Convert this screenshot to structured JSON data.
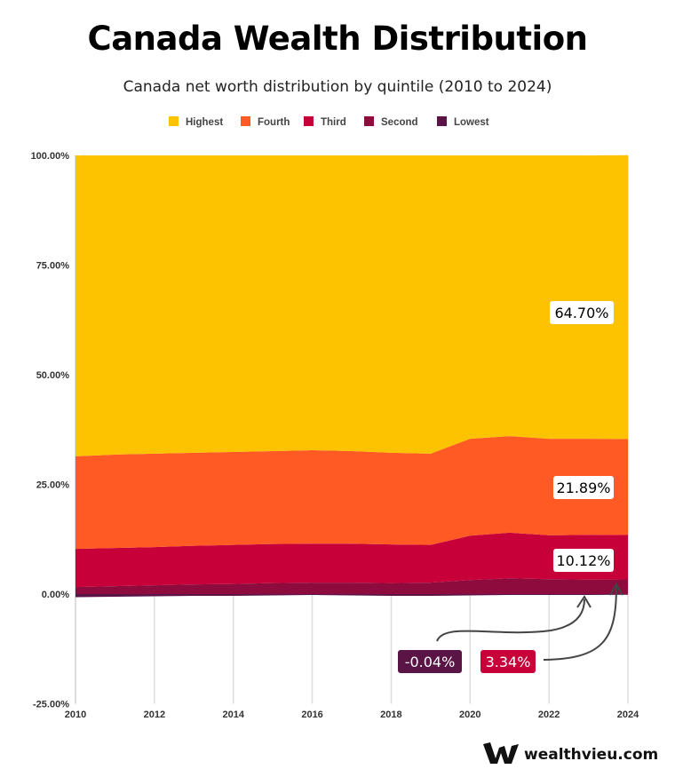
{
  "chart_data": {
    "type": "area",
    "stacked": true,
    "title": "Canada Wealth Distribution",
    "subtitle": "Canada net worth distribution by quintile (2010 to 2024)",
    "x": [
      2010,
      2011,
      2012,
      2013,
      2014,
      2015,
      2016,
      2017,
      2018,
      2019,
      2020,
      2021,
      2022,
      2023,
      2024
    ],
    "x_ticks": [
      "2010",
      "2012",
      "2014",
      "2016",
      "2018",
      "2020",
      "2022",
      "2024"
    ],
    "y_ticks": [
      "100.00%",
      "75.00%",
      "50.00%",
      "25.00%",
      "0.00%",
      "-25.00%"
    ],
    "ylim": [
      -25,
      100
    ],
    "grid": "vertical",
    "legend_position": "top",
    "series": [
      {
        "name": "Lowest",
        "color": "#5A1446",
        "values": [
          -0.6,
          -0.5,
          -0.4,
          -0.3,
          -0.3,
          -0.2,
          -0.1,
          -0.2,
          -0.3,
          -0.3,
          -0.2,
          -0.1,
          -0.1,
          -0.1,
          -0.04
        ]
      },
      {
        "name": "Second",
        "color": "#8E0B3E",
        "values": [
          1.6,
          1.8,
          2.0,
          2.2,
          2.3,
          2.5,
          2.6,
          2.6,
          2.5,
          2.6,
          3.2,
          3.6,
          3.4,
          3.3,
          3.34
        ]
      },
      {
        "name": "Third",
        "color": "#C8003A",
        "values": [
          8.7,
          8.7,
          8.7,
          8.8,
          8.9,
          8.9,
          8.9,
          8.9,
          8.8,
          8.6,
          10.1,
          10.4,
          10.0,
          10.2,
          10.12
        ]
      },
      {
        "name": "Fourth",
        "color": "#FF5A24",
        "values": [
          21.1,
          21.3,
          21.3,
          21.2,
          21.2,
          21.2,
          21.3,
          21.1,
          20.9,
          20.8,
          22.1,
          22.0,
          22.0,
          21.9,
          21.89
        ]
      },
      {
        "name": "Highest",
        "color": "#FDC300",
        "values": [
          68.6,
          68.2,
          68.0,
          67.8,
          67.6,
          67.4,
          67.2,
          67.4,
          67.8,
          68.0,
          64.6,
          64.0,
          64.6,
          64.6,
          64.7
        ]
      }
    ],
    "legend": [
      "Highest",
      "Fourth",
      "Third",
      "Second",
      "Lowest"
    ],
    "annotations": {
      "highest": "64.70%",
      "fourth": "21.89%",
      "third": "10.12%",
      "lowest": "-0.04%",
      "second": "3.34%"
    }
  },
  "brand": {
    "name": "wealthvieu.com"
  }
}
